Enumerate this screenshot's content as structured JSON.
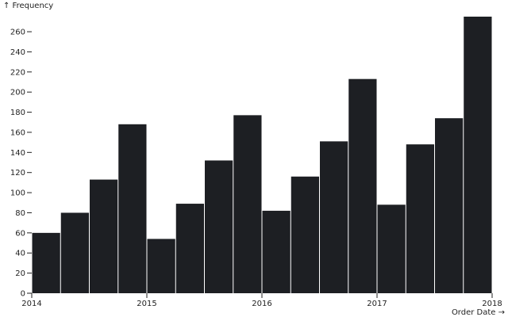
{
  "chart_data": {
    "type": "histogram",
    "y_label": "↑ Frequency",
    "x_label": "Order Date →",
    "bins": [
      2014,
      2014.25,
      2014.5,
      2014.75,
      2015,
      2015.25,
      2015.5,
      2015.75,
      2016,
      2016.25,
      2016.5,
      2016.75,
      2017,
      2017.25,
      2017.5,
      2017.75,
      2018
    ],
    "values": [
      60,
      80,
      113,
      168,
      54,
      89,
      132,
      177,
      82,
      116,
      151,
      213,
      88,
      148,
      174,
      275
    ],
    "color": "#1d1f23",
    "xlim": [
      2014,
      2018
    ],
    "xticks": [
      2014,
      2015,
      2016,
      2017,
      2018
    ],
    "ylim": [
      0,
      275
    ],
    "yticks": [
      0,
      20,
      40,
      60,
      80,
      100,
      120,
      140,
      160,
      180,
      200,
      220,
      240,
      260
    ]
  }
}
